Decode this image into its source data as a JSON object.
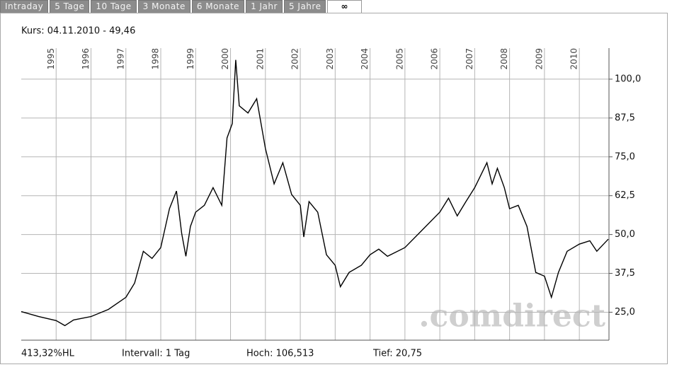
{
  "tabs": [
    "Intraday",
    "5 Tage",
    "10 Tage",
    "3 Monate",
    "6 Monate",
    "1 Jahr",
    "5 Jahre",
    "∞"
  ],
  "header": "Kurs: 04.11.2010 - 49,46",
  "footer": [
    "413,32%HL",
    "Intervall: 1 Tag",
    "Hoch: 106,513",
    "Tief: 20,75"
  ],
  "chart_data": {
    "type": "line",
    "watermark": ".comdirect",
    "color": "#000000",
    "grid": true,
    "x": [
      1994.0,
      1994.5,
      1995.0,
      1995.25,
      1995.5,
      1996.0,
      1996.5,
      1997.0,
      1997.25,
      1997.5,
      1997.75,
      1998.0,
      1998.25,
      1998.45,
      1998.6,
      1998.72,
      1998.85,
      1999.0,
      1999.25,
      1999.5,
      1999.75,
      1999.9,
      2000.05,
      2000.15,
      2000.25,
      2000.5,
      2000.75,
      2001.0,
      2001.25,
      2001.5,
      2001.75,
      2002.0,
      2002.1,
      2002.25,
      2002.5,
      2002.75,
      2003.0,
      2003.15,
      2003.4,
      2003.75,
      2004.0,
      2004.25,
      2004.5,
      2005.0,
      2005.5,
      2006.0,
      2006.25,
      2006.5,
      2006.75,
      2007.0,
      2007.35,
      2007.5,
      2007.65,
      2007.85,
      2008.0,
      2008.25,
      2008.5,
      2008.75,
      2009.0,
      2009.2,
      2009.4,
      2009.65,
      2010.0,
      2010.3,
      2010.5,
      2010.83
    ],
    "values": [
      25.2,
      23.6,
      22.3,
      20.7,
      22.5,
      23.6,
      25.9,
      29.8,
      34.4,
      44.6,
      42.3,
      45.8,
      58.3,
      64.0,
      50.3,
      43.0,
      52.6,
      57.2,
      59.4,
      65.1,
      59.4,
      81.1,
      85.7,
      106.2,
      91.4,
      89.1,
      93.7,
      77.7,
      66.3,
      73.1,
      62.9,
      59.4,
      49.2,
      60.6,
      57.2,
      43.5,
      40.1,
      33.2,
      37.8,
      40.1,
      43.5,
      45.3,
      43.0,
      45.8,
      51.5,
      57.2,
      61.7,
      56.0,
      60.6,
      65.1,
      73.1,
      66.3,
      71.3,
      65.1,
      58.3,
      59.4,
      52.6,
      37.8,
      36.6,
      29.8,
      37.8,
      44.6,
      46.9,
      48.0,
      44.6,
      48.5
    ],
    "xlim": [
      1994,
      2010.85
    ],
    "xticks": [
      1995,
      1996,
      1997,
      1998,
      1999,
      2000,
      2001,
      2002,
      2003,
      2004,
      2005,
      2006,
      2007,
      2008,
      2009,
      2010
    ],
    "ylim": [
      16,
      110
    ],
    "yticks": [
      {
        "value": 25,
        "label": "25,0"
      },
      {
        "value": 37.5,
        "label": "37,5"
      },
      {
        "value": 50,
        "label": "50,0"
      },
      {
        "value": 62.5,
        "label": "62,5"
      },
      {
        "value": 75,
        "label": "75,0"
      },
      {
        "value": 87.5,
        "label": "87,5"
      },
      {
        "value": 100,
        "label": "100,0"
      }
    ]
  }
}
